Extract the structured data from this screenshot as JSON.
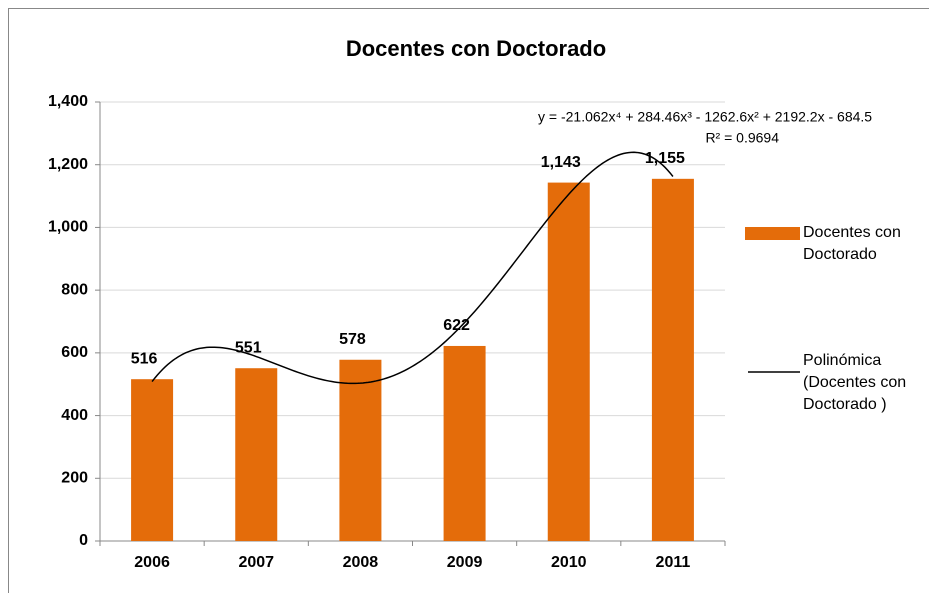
{
  "chart_data": {
    "type": "bar",
    "title": "Docentes con Doctorado",
    "categories": [
      "2006",
      "2007",
      "2008",
      "2009",
      "2010",
      "2011"
    ],
    "series": [
      {
        "name": "Docentes con Doctorado",
        "color": "#e46c0a",
        "values": [
          516,
          551,
          578,
          622,
          1143,
          1155
        ],
        "value_labels": [
          "516",
          "551",
          "578",
          "622",
          "1,143",
          "1,155"
        ]
      }
    ],
    "trendline": {
      "type": "polynomial",
      "order": 4,
      "color": "#000000",
      "name": "Polinómica (Docentes con Doctorado )",
      "equation": "y = -21.062x⁴ + 284.46x³ - 1262.6x² + 2192.2x - 684.5",
      "r2_label": "R² = 0.9694"
    },
    "ylim": [
      0,
      1400
    ],
    "yticks": [
      0,
      200,
      400,
      600,
      800,
      {
        "value": 1000,
        "label": "1,000"
      },
      {
        "value": 1200,
        "label": "1,200"
      },
      {
        "value": 1400,
        "label": "1,400"
      }
    ],
    "grid": true,
    "legend": "right"
  }
}
